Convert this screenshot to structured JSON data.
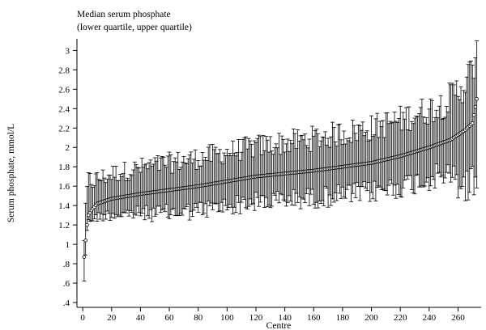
{
  "chart_data": {
    "type": "scatter",
    "title": "Median serum phosphate",
    "subtitle": "(lower quartile, upper quartile)",
    "xlabel": "Centre",
    "ylabel": "Serum phosphate, mmol/L",
    "xlim": [
      -4,
      276
    ],
    "ylim": [
      0.35,
      3.12
    ],
    "x_ticks": [
      0,
      20,
      40,
      60,
      80,
      100,
      120,
      140,
      160,
      180,
      200,
      220,
      240,
      260
    ],
    "x_tick_labels": [
      "0",
      "20",
      "40",
      "60",
      "80",
      "100",
      "120",
      "140",
      "160",
      "180",
      "200",
      "220",
      "240",
      "260"
    ],
    "y_ticks": [
      0.4,
      0.6,
      0.8,
      1.0,
      1.2,
      1.4,
      1.6,
      1.8,
      2.0,
      2.2,
      2.4,
      2.6,
      2.8,
      3.0
    ],
    "y_tick_labels": [
      ".4",
      ".6",
      ".8",
      "1",
      "1.2",
      "1.4",
      "1.6",
      "1.8",
      "2",
      "2.2",
      "2.4",
      "2.6",
      "2.8",
      "3"
    ],
    "grid": false,
    "legend": "none",
    "n_centres": 273,
    "median_anchors": [
      [
        1,
        0.87
      ],
      [
        2,
        1.04
      ],
      [
        3,
        1.2
      ],
      [
        4,
        1.3
      ],
      [
        6,
        1.35
      ],
      [
        10,
        1.42
      ],
      [
        20,
        1.47
      ],
      [
        40,
        1.52
      ],
      [
        60,
        1.56
      ],
      [
        80,
        1.6
      ],
      [
        100,
        1.65
      ],
      [
        120,
        1.7
      ],
      [
        140,
        1.73
      ],
      [
        160,
        1.76
      ],
      [
        180,
        1.8
      ],
      [
        200,
        1.84
      ],
      [
        220,
        1.91
      ],
      [
        240,
        2.0
      ],
      [
        255,
        2.08
      ],
      [
        265,
        2.18
      ],
      [
        270,
        2.25
      ],
      [
        273,
        2.5
      ]
    ],
    "lower_offset_anchors": [
      [
        1,
        0.22
      ],
      [
        3,
        0.05
      ],
      [
        10,
        0.14
      ],
      [
        60,
        0.24
      ],
      [
        140,
        0.27
      ],
      [
        200,
        0.3
      ],
      [
        250,
        0.33
      ],
      [
        273,
        0.7
      ]
    ],
    "upper_offset_anchors": [
      [
        1,
        0.2
      ],
      [
        3,
        0.35
      ],
      [
        10,
        0.25
      ],
      [
        60,
        0.28
      ],
      [
        140,
        0.32
      ],
      [
        200,
        0.36
      ],
      [
        250,
        0.4
      ],
      [
        273,
        0.55
      ]
    ],
    "marker": "open-circle",
    "color": "#000000"
  }
}
